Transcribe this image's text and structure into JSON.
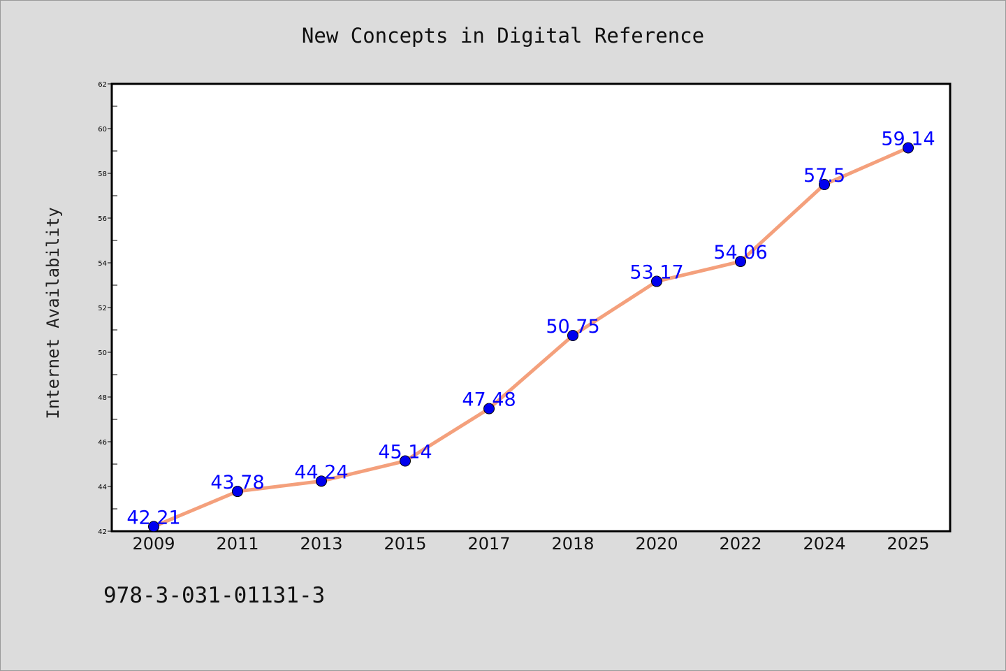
{
  "chart_data": {
    "type": "line",
    "title": "New Concepts in Digital Reference",
    "xlabel": "",
    "ylabel": "Internet Availability",
    "categories": [
      "2009",
      "2011",
      "2013",
      "2015",
      "2017",
      "2018",
      "2020",
      "2022",
      "2024",
      "2025"
    ],
    "series": [
      {
        "values": [
          42.21,
          43.78,
          44.24,
          45.14,
          47.48,
          50.75,
          53.17,
          54.06,
          57.5,
          59.14
        ],
        "data_labels": [
          "42.21",
          "43.78",
          "44.24",
          "45.14",
          "47.48",
          "50.75",
          "53.17",
          "54.06",
          "57.5",
          "59.14"
        ],
        "line_color": "#f4a07c",
        "marker_color": "#0000ee",
        "label_color": "#0000ff"
      }
    ],
    "ylim": [
      42,
      62
    ],
    "yticks": [
      "42",
      "44",
      "46",
      "48",
      "50",
      "52",
      "54",
      "56",
      "58",
      "60",
      "62"
    ],
    "grid": false,
    "legend": "none"
  },
  "footnote": "978-3-031-01131-3",
  "colors": {
    "background": "#dcdcdc",
    "plot_background": "#ffffff",
    "axis": "#000000"
  }
}
